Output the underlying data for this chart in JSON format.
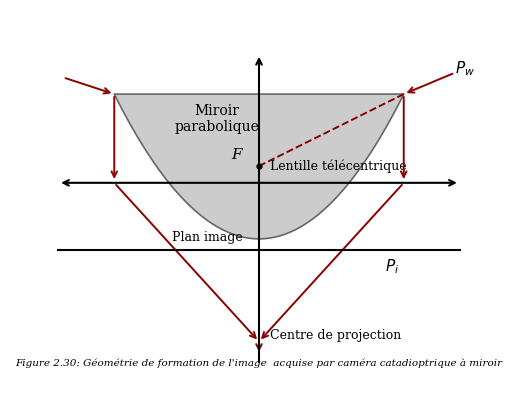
{
  "title": "Figure 2.30: Géométrie de formation de l'image  acquise par caméra catadioptrique à miroir",
  "bg_color": "#ffffff",
  "mirror_color": "#cccccc",
  "mirror_edge_color": "#666666",
  "arrow_color": "#8b0000",
  "axis_color": "#000000",
  "text_color": "#000000",
  "label_miroir": "Miroir\nparabolique",
  "label_F": "F",
  "label_Pw": "$P_w$",
  "label_Pi": "$P_i$",
  "label_lentille": "Lentille télécentrique",
  "label_plan": "Plan image",
  "label_centre": "Centre de projection",
  "xlim": [
    -2.3,
    2.3
  ],
  "ylim": [
    -2.0,
    1.45
  ]
}
